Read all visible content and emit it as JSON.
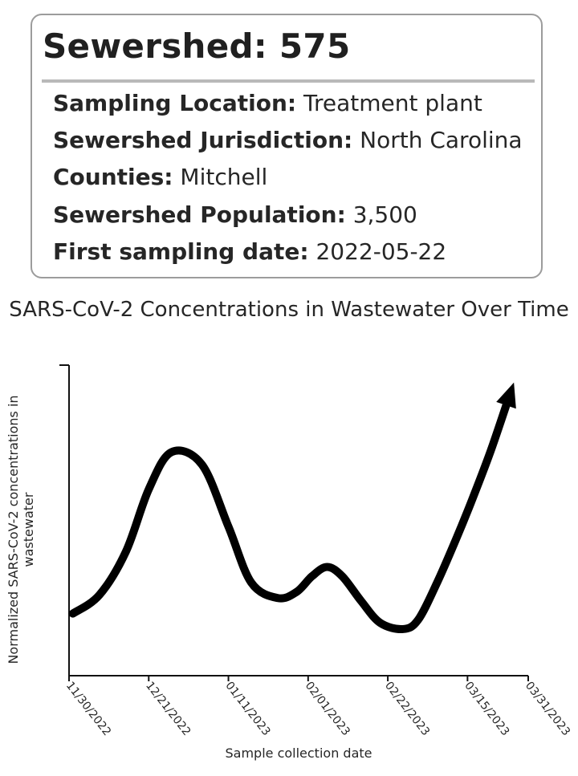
{
  "card": {
    "title": "Sewershed: 575",
    "rows": [
      {
        "label": "Sampling Location:",
        "value": "Treatment plant"
      },
      {
        "label": "Sewershed Jurisdiction:",
        "value": "North Carolina"
      },
      {
        "label": "Counties:",
        "value": "Mitchell"
      },
      {
        "label": "Sewershed Population:",
        "value": "3,500"
      },
      {
        "label": "First sampling date:",
        "value": "2022-05-22"
      }
    ]
  },
  "chart_data": {
    "type": "line",
    "title": "SARS-CoV-2 Concentrations in Wastewater Over Time",
    "xlabel": "Sample collection date",
    "ylabel": "Normalized SARS-CoV-2 concentrations in wastewater",
    "x_tick_labels": [
      "11/30/2022",
      "12/21/2022",
      "01/11/2023",
      "02/01/2023",
      "02/22/2023",
      "03/15/2023",
      "03/31/2023"
    ],
    "x_tick_dates": [
      "2022-11-30",
      "2022-12-21",
      "2023-01-11",
      "2023-02-01",
      "2023-02-22",
      "2023-03-15",
      "2023-03-31"
    ],
    "xlim": [
      "2022-11-30",
      "2023-03-31"
    ],
    "ylim": [
      0,
      100
    ],
    "y_ticks_shown": false,
    "grid": false,
    "line_color": "#000000",
    "end_arrow": true,
    "series": [
      {
        "x": [
          "2022-12-01",
          "2022-12-08",
          "2022-12-15",
          "2022-12-21",
          "2022-12-27",
          "2023-01-04",
          "2023-01-11",
          "2023-01-17",
          "2023-01-24",
          "2023-01-29",
          "2023-02-02",
          "2023-02-06",
          "2023-02-10",
          "2023-02-15",
          "2023-02-20",
          "2023-02-26",
          "2023-03-02",
          "2023-03-07",
          "2023-03-12",
          "2023-03-16",
          "2023-03-21",
          "2023-03-26"
        ],
        "y": [
          20,
          26,
          40,
          60,
          72,
          68,
          48,
          30,
          25,
          27,
          32,
          35,
          32,
          24,
          17,
          15,
          18,
          30,
          44,
          56,
          72,
          90
        ]
      }
    ]
  }
}
